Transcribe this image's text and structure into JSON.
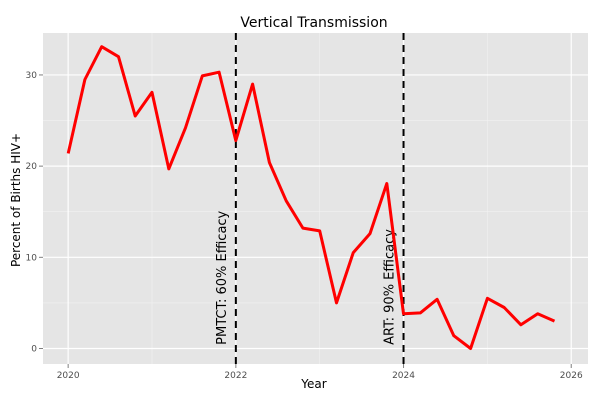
{
  "chart_data": {
    "type": "line",
    "title": "Vertical Transmission",
    "xlabel": "Year",
    "ylabel": "Percent of Births HIV+",
    "xlim": [
      2019.7,
      2026.2
    ],
    "ylim": [
      -1.7,
      34.6
    ],
    "xticks": [
      2020,
      2022,
      2024,
      2026
    ],
    "yticks": [
      0,
      10,
      20,
      30
    ],
    "grid": true,
    "colors": {
      "panel": "#e5e5e5",
      "grid_major": "#ffffff",
      "grid_minor": "#f2f2f2",
      "line": "#ff0000",
      "annotation": "#000000"
    },
    "series": [
      {
        "x": [
          2020.0,
          2020.2,
          2020.4,
          2020.6,
          2020.8,
          2021.0,
          2021.2,
          2021.4,
          2021.6,
          2021.8,
          2022.0,
          2022.2,
          2022.4,
          2022.6,
          2022.8,
          2023.0,
          2023.2,
          2023.4,
          2023.6,
          2023.8,
          2024.0,
          2024.2,
          2024.4,
          2024.6,
          2024.8,
          2025.0,
          2025.2,
          2025.4,
          2025.6,
          2025.8
        ],
        "y": [
          21.4,
          29.5,
          33.1,
          32.0,
          25.5,
          28.1,
          19.7,
          24.2,
          29.9,
          30.3,
          22.8,
          29.0,
          20.4,
          16.2,
          13.2,
          12.9,
          5.0,
          10.5,
          12.6,
          18.1,
          3.8,
          3.9,
          5.4,
          1.4,
          0.0,
          5.5,
          4.5,
          2.6,
          3.8,
          3.0
        ]
      }
    ],
    "annotations": [
      {
        "x": 2022.0,
        "label": "PMTCT: 60% Efficacy"
      },
      {
        "x": 2024.0,
        "label": "ART: 90% Efficacy"
      }
    ]
  }
}
